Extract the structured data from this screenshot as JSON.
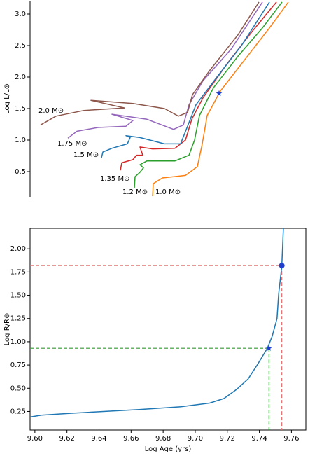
{
  "chart_data": [
    {
      "type": "line",
      "ylabel": "Log L/L⊙",
      "xlim": [
        4.0,
        3.6
      ],
      "ylim": [
        0.1,
        3.2
      ],
      "yticks": [
        0.5,
        {
          "value": 1,
          "label": "1.0"
        },
        1.5,
        {
          "value": 2,
          "label": "2.0"
        },
        2.5,
        {
          "value": 3,
          "label": "3.0"
        }
      ],
      "series": [
        {
          "name": "1.0 M⊙",
          "color": "#ff7f0e",
          "x": [
            3.825,
            3.824,
            3.811,
            3.778,
            3.761,
            3.754,
            3.747,
            3.728,
            3.693,
            3.658,
            3.631
          ],
          "values": [
            0.11,
            0.31,
            0.4,
            0.44,
            0.58,
            0.94,
            1.39,
            1.78,
            2.28,
            2.78,
            3.19
          ]
        },
        {
          "name": "1.2 M⊙",
          "color": "#2ca02c",
          "x": [
            3.851,
            3.85,
            3.843,
            3.838,
            3.843,
            3.833,
            3.793,
            3.773,
            3.765,
            3.758,
            3.738,
            3.703,
            3.668,
            3.64
          ],
          "values": [
            0.24,
            0.42,
            0.49,
            0.56,
            0.61,
            0.67,
            0.67,
            0.76,
            1.0,
            1.39,
            1.83,
            2.33,
            2.78,
            3.19
          ]
        },
        {
          "name": "1.35 M⊙",
          "color": "#d62728",
          "x": [
            3.871,
            3.869,
            3.853,
            3.848,
            3.839,
            3.843,
            3.825,
            3.793,
            3.778,
            3.769,
            3.753,
            3.718,
            3.683,
            3.648
          ],
          "values": [
            0.52,
            0.64,
            0.69,
            0.76,
            0.76,
            0.89,
            0.86,
            0.87,
            1.0,
            1.33,
            1.67,
            2.22,
            2.72,
            3.19
          ]
        },
        {
          "name": "1.5 M⊙",
          "color": "#1f77b4",
          "x": [
            3.898,
            3.896,
            3.883,
            3.861,
            3.857,
            3.863,
            3.843,
            3.808,
            3.785,
            3.775,
            3.763,
            3.733,
            3.698,
            3.658
          ],
          "values": [
            0.72,
            0.81,
            0.87,
            0.94,
            1.04,
            1.07,
            1.04,
            0.94,
            0.94,
            1.22,
            1.56,
            2.0,
            2.5,
            3.19
          ]
        },
        {
          "name": "1.75 M⊙",
          "color": "#9467bd",
          "x": [
            3.946,
            3.933,
            3.903,
            3.863,
            3.853,
            3.883,
            3.833,
            3.795,
            3.781,
            3.773,
            3.753,
            3.713,
            3.668
          ],
          "values": [
            1.03,
            1.14,
            1.2,
            1.22,
            1.31,
            1.41,
            1.33,
            1.17,
            1.24,
            1.56,
            1.94,
            2.44,
            3.19
          ]
        },
        {
          "name": "2.0 M⊙",
          "color": "#8c564b",
          "x": [
            3.985,
            3.963,
            3.923,
            3.865,
            3.913,
            3.853,
            3.808,
            3.788,
            3.775,
            3.768,
            3.743,
            3.703,
            3.673
          ],
          "values": [
            1.24,
            1.38,
            1.47,
            1.51,
            1.63,
            1.58,
            1.5,
            1.38,
            1.44,
            1.72,
            2.11,
            2.67,
            3.19
          ]
        }
      ],
      "markers": [
        {
          "shape": "star",
          "x": 3.73,
          "y": 1.74,
          "color": "#1f3fd0"
        }
      ]
    },
    {
      "type": "line",
      "xlabel": "Log Age (yrs)",
      "ylabel": "Log R/R⊙",
      "xlim": [
        9.597,
        9.769
      ],
      "ylim": [
        0.05,
        2.22
      ],
      "xticks": [
        {
          "value": 9.6,
          "label": "9.60"
        },
        9.62,
        9.64,
        9.66,
        9.68,
        {
          "value": 9.7,
          "label": "9.70"
        },
        9.72,
        9.74,
        9.76
      ],
      "yticks": [
        {
          "value": 0.25,
          "label": "0.25"
        },
        {
          "value": 0.5,
          "label": "0.50"
        },
        {
          "value": 0.75,
          "label": "0.75"
        },
        {
          "value": 1,
          "label": "1.00"
        },
        {
          "value": 1.25,
          "label": "1.25"
        },
        {
          "value": 1.5,
          "label": "1.50"
        },
        {
          "value": 1.75,
          "label": "1.75"
        },
        {
          "value": 2,
          "label": "2.00"
        }
      ],
      "series": [
        {
          "color": "#1f77b4",
          "x": [
            9.597,
            9.604,
            9.622,
            9.665,
            9.691,
            9.709,
            9.718,
            9.726,
            9.733,
            9.739,
            9.745,
            9.748,
            9.751,
            9.752,
            9.754,
            9.755
          ],
          "values": [
            0.19,
            0.21,
            0.23,
            0.27,
            0.3,
            0.34,
            0.39,
            0.49,
            0.6,
            0.76,
            0.93,
            1.06,
            1.25,
            1.51,
            1.81,
            2.22
          ]
        }
      ],
      "markers": [
        {
          "shape": "star",
          "x": 9.746,
          "y": 0.93,
          "color": "#1f3fd0",
          "guide_color": "#2ca02c"
        },
        {
          "shape": "dot",
          "x": 9.754,
          "y": 1.82,
          "color": "#1f3fd0",
          "guide_color": "#e8706e"
        }
      ]
    }
  ]
}
